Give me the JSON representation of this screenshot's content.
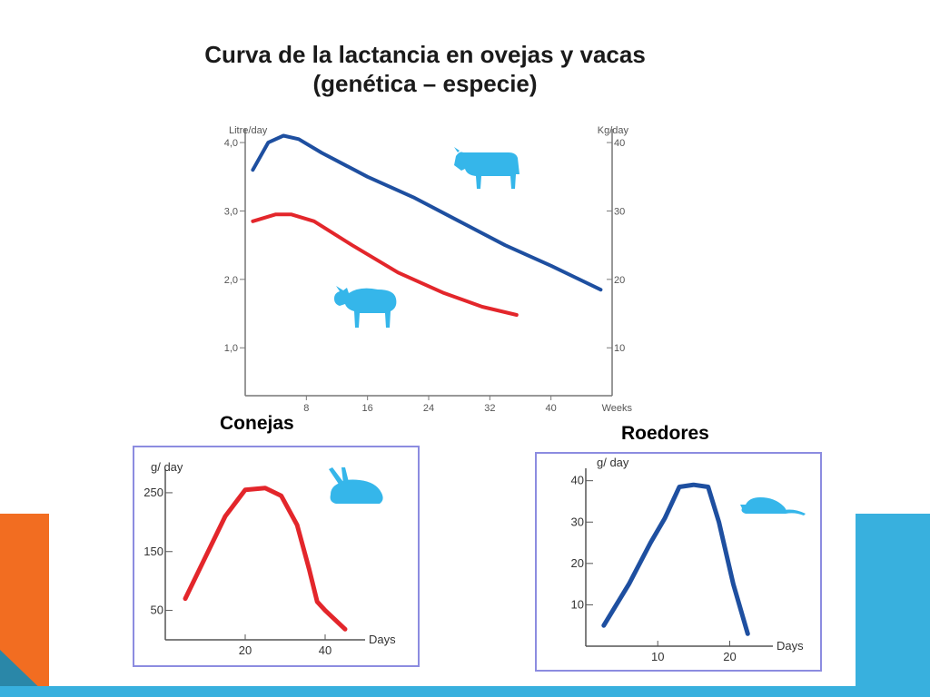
{
  "title_line1": "Curva de la lactancia en ovejas y vacas",
  "title_line2": "(genética – especie)",
  "colors": {
    "red": "#e3262b",
    "blue": "#1e4fa0",
    "animal": "#35b6ea",
    "box_border": "#8c8ce0"
  },
  "icons": [
    "cow-icon",
    "sheep-icon",
    "rabbit-icon",
    "rat-icon"
  ],
  "chart_data": [
    {
      "type": "line",
      "ylabel_left": "Litre/day",
      "ylabel_right": "Kg/day",
      "xlabel": "Weeks",
      "xlim": [
        0,
        48
      ],
      "ylim": [
        0.3,
        4.2
      ],
      "x_ticks": [
        8,
        16,
        24,
        32,
        40
      ],
      "y_ticks_left": [
        {
          "value": 1.0,
          "label": "1,0"
        },
        {
          "value": 2.0,
          "label": "2,0"
        },
        {
          "value": 3.0,
          "label": "3,0"
        },
        {
          "value": 4.0,
          "label": "4,0"
        }
      ],
      "y_ticks_right": [
        {
          "value": 1.0,
          "label": "10"
        },
        {
          "value": 2.0,
          "label": "20"
        },
        {
          "value": 3.0,
          "label": "30"
        },
        {
          "value": 4.0,
          "label": "40"
        }
      ],
      "series": [
        {
          "color": "#1e4fa0",
          "x": [
            1,
            3,
            5,
            7,
            10,
            16,
            22,
            28,
            34,
            40,
            46.5
          ],
          "y": [
            3.6,
            4.0,
            4.1,
            4.05,
            3.85,
            3.5,
            3.2,
            2.85,
            2.5,
            2.2,
            1.85
          ]
        },
        {
          "color": "#e3262b",
          "x": [
            1,
            4,
            6,
            9,
            14,
            20,
            26,
            31,
            35.5
          ],
          "y": [
            2.85,
            2.95,
            2.95,
            2.85,
            2.5,
            2.1,
            1.8,
            1.6,
            1.48
          ]
        }
      ]
    },
    {
      "type": "line",
      "subtitle": "Conejas",
      "ylabel": "g/ day",
      "xlabel": "Days",
      "xlim": [
        0,
        50
      ],
      "ylim": [
        0,
        290
      ],
      "x_ticks": [
        20,
        40
      ],
      "y_ticks": [
        50,
        150,
        250
      ],
      "series": [
        {
          "color": "#e3262b",
          "x": [
            5,
            10,
            15,
            20,
            25,
            29,
            33,
            36,
            38,
            40,
            45
          ],
          "y": [
            70,
            140,
            210,
            255,
            258,
            245,
            195,
            120,
            65,
            50,
            18
          ]
        }
      ]
    },
    {
      "type": "line",
      "subtitle": "Roedores",
      "ylabel": "g/ day",
      "xlabel": "Days",
      "xlim": [
        0,
        26
      ],
      "ylim": [
        0,
        43
      ],
      "x_ticks": [
        10,
        20
      ],
      "y_ticks": [
        10,
        20,
        30,
        40
      ],
      "series": [
        {
          "color": "#1e4fa0",
          "x": [
            2.5,
            6,
            9,
            11,
            13,
            15,
            17,
            18.5,
            20.5,
            22.5
          ],
          "y": [
            5,
            15,
            25,
            31,
            38.5,
            39,
            38.5,
            30,
            15,
            3
          ]
        }
      ]
    }
  ]
}
